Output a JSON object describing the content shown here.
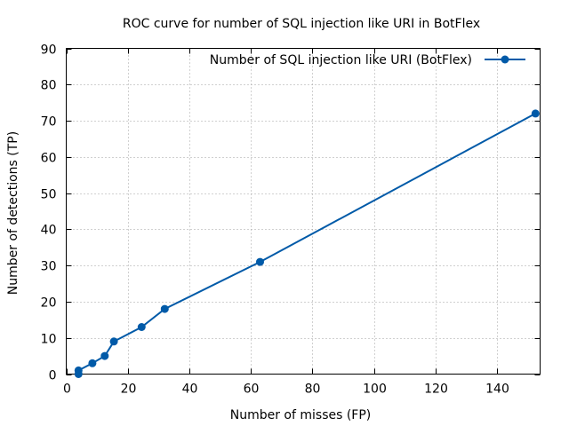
{
  "chart_data": {
    "type": "line",
    "title": "ROC curve for number of SQL injection like URI in BotFlex",
    "xlabel": "Number of misses (FP)",
    "ylabel": "Number of detections (TP)",
    "xlim": [
      0,
      154
    ],
    "ylim": [
      0,
      90
    ],
    "xticks": [
      0,
      20,
      40,
      60,
      80,
      100,
      120,
      140
    ],
    "yticks": [
      0,
      10,
      20,
      30,
      40,
      50,
      60,
      70,
      80,
      90
    ],
    "grid": true,
    "legend_position": "top-right",
    "series": [
      {
        "name": "Number of SQL injection like URI (BotFlex)",
        "color": "#005aa8",
        "marker": "filled-circle",
        "points": [
          {
            "x": 4,
            "y": 0
          },
          {
            "x": 4,
            "y": 1
          },
          {
            "x": 8.5,
            "y": 3
          },
          {
            "x": 12.5,
            "y": 5
          },
          {
            "x": 15.5,
            "y": 9
          },
          {
            "x": 24.5,
            "y": 13
          },
          {
            "x": 32,
            "y": 18
          },
          {
            "x": 63,
            "y": 31
          },
          {
            "x": 152.5,
            "y": 72
          }
        ]
      }
    ]
  }
}
